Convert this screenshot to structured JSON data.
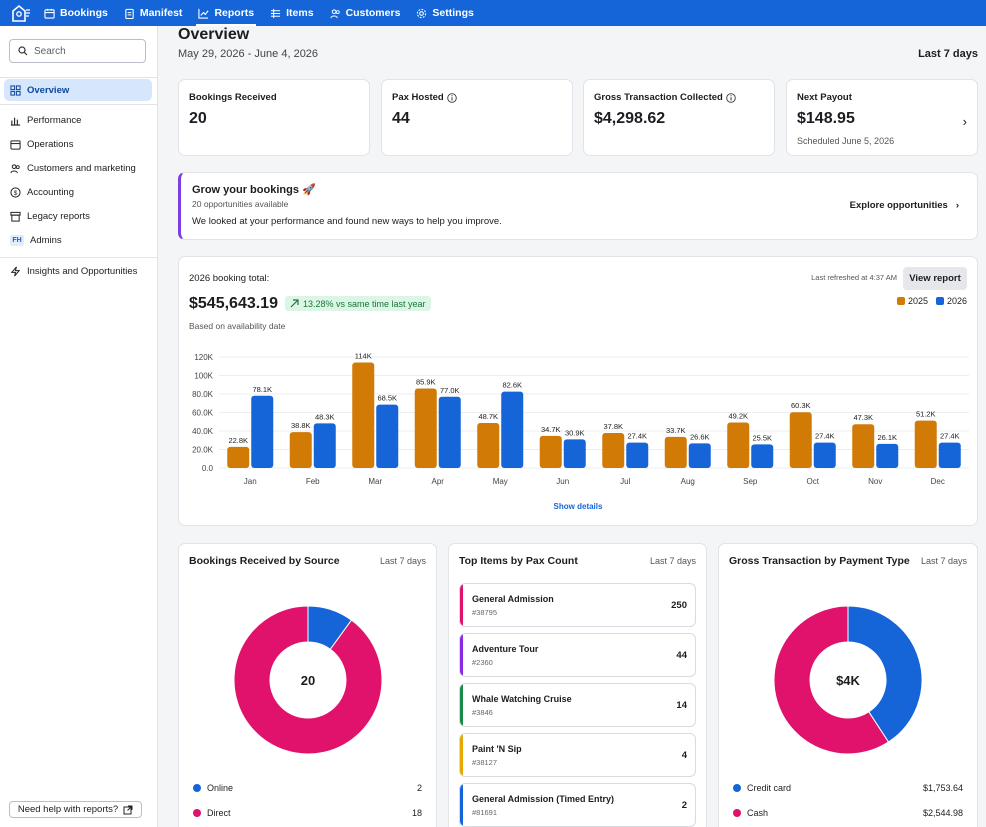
{
  "nav": {
    "items": [
      {
        "label": "Bookings",
        "icon": "calendar-icon"
      },
      {
        "label": "Manifest",
        "icon": "clipboard-icon"
      },
      {
        "label": "Reports",
        "icon": "chart-icon",
        "active": true
      },
      {
        "label": "Items",
        "icon": "grid-icon"
      },
      {
        "label": "Customers",
        "icon": "people-icon"
      },
      {
        "label": "Settings",
        "icon": "gear-icon"
      }
    ]
  },
  "sidebar": {
    "search_placeholder": "Search",
    "items": [
      {
        "label": "Overview",
        "icon": "dashboard-icon",
        "active": true
      },
      {
        "label": "Performance",
        "icon": "bar-chart-icon"
      },
      {
        "label": "Operations",
        "icon": "calendar-icon"
      },
      {
        "label": "Customers and marketing",
        "icon": "people-icon"
      },
      {
        "label": "Accounting",
        "icon": "dollar-icon"
      },
      {
        "label": "Legacy reports",
        "icon": "archive-icon"
      },
      {
        "label": "Admins",
        "icon": "fh-badge",
        "badge": "FH"
      },
      {
        "label": "Insights and Opportunities",
        "icon": "lightning-icon"
      }
    ],
    "help_label": "Need help with reports?"
  },
  "header": {
    "title": "Overview",
    "date_range": "May 29, 2026 - June 4, 2026",
    "range_selector": "Last 7 days"
  },
  "stats": [
    {
      "label": "Bookings Received",
      "value": "20"
    },
    {
      "label": "Pax Hosted",
      "value": "44",
      "info": true
    },
    {
      "label": "Gross Transaction Collected",
      "value": "$4,298.62",
      "info": true
    },
    {
      "label": "Next Payout",
      "value": "$148.95",
      "sub": "Scheduled June 5, 2026"
    }
  ],
  "grow": {
    "title": "Grow your bookings 🚀",
    "subtitle": "20 opportunities available",
    "description": "We looked at your performance and found new ways to help you improve.",
    "link": "Explore opportunities"
  },
  "booking_chart": {
    "label": "2026 booking total:",
    "total": "$545,643.19",
    "badge": "13.28% vs same time last year",
    "basis": "Based on availability date",
    "refreshed": "Last refreshed at 4:37 AM",
    "button": "View report",
    "details_link": "Show details",
    "colors": {
      "2025": "#d17a06",
      "2026": "#1565d8"
    }
  },
  "chart_data": {
    "type": "bar",
    "categories": [
      "Jan",
      "Feb",
      "Mar",
      "Apr",
      "May",
      "Jun",
      "Jul",
      "Aug",
      "Sep",
      "Oct",
      "Nov",
      "Dec"
    ],
    "series": [
      {
        "name": "2025",
        "values": [
          22.8,
          38.8,
          114,
          85.9,
          48.7,
          34.7,
          37.8,
          33.7,
          49.2,
          60.3,
          47.3,
          51.2
        ],
        "labels": [
          "22.8K",
          "38.8K",
          "114K",
          "85.9K",
          "48.7K",
          "34.7K",
          "37.8K",
          "33.7K",
          "49.2K",
          "60.3K",
          "47.3K",
          "51.2K"
        ]
      },
      {
        "name": "2026",
        "values": [
          78.1,
          48.3,
          68.5,
          77.0,
          82.6,
          30.9,
          27.4,
          26.6,
          25.5,
          27.4,
          26.1,
          27.4
        ],
        "labels": [
          "78.1K",
          "48.3K",
          "68.5K",
          "77.0K",
          "82.6K",
          "30.9K",
          "27.4K",
          "26.6K",
          "25.5K",
          "27.4K",
          "26.1K",
          "27.4K"
        ]
      }
    ],
    "yticks": [
      "0.0",
      "20.0K",
      "40.0K",
      "60.0K",
      "80.0K",
      "100K",
      "120K"
    ],
    "ylim": [
      0,
      120
    ],
    "grid": true,
    "legend": "top-right"
  },
  "source_card": {
    "title": "Bookings Received by Source",
    "range": "Last 7 days",
    "center": "20",
    "slices": [
      {
        "name": "Online",
        "value": 2,
        "color": "#1565d8"
      },
      {
        "name": "Direct",
        "value": 18,
        "color": "#e0126b"
      }
    ]
  },
  "items_card": {
    "title": "Top Items by Pax Count",
    "range": "Last 7 days",
    "items": [
      {
        "name": "General Admission",
        "id": "#38795",
        "count": "250",
        "color": "#e0126b"
      },
      {
        "name": "Adventure Tour",
        "id": "#2360",
        "count": "44",
        "color": "#8a2be2"
      },
      {
        "name": "Whale Watching Cruise",
        "id": "#3846",
        "count": "14",
        "color": "#1a8a4a"
      },
      {
        "name": "Paint 'N Sip",
        "id": "#38127",
        "count": "4",
        "color": "#e6a800"
      },
      {
        "name": "General Admission (Timed Entry)",
        "id": "#81691",
        "count": "2",
        "color": "#1565d8"
      }
    ]
  },
  "payment_card": {
    "title": "Gross Transaction by Payment Type",
    "range": "Last 7 days",
    "center": "$4K",
    "slices": [
      {
        "name": "Credit card",
        "value": 1753.64,
        "display": "$1,753.64",
        "color": "#1565d8"
      },
      {
        "name": "Cash",
        "value": 2544.98,
        "display": "$2,544.98",
        "color": "#e0126b"
      }
    ]
  }
}
